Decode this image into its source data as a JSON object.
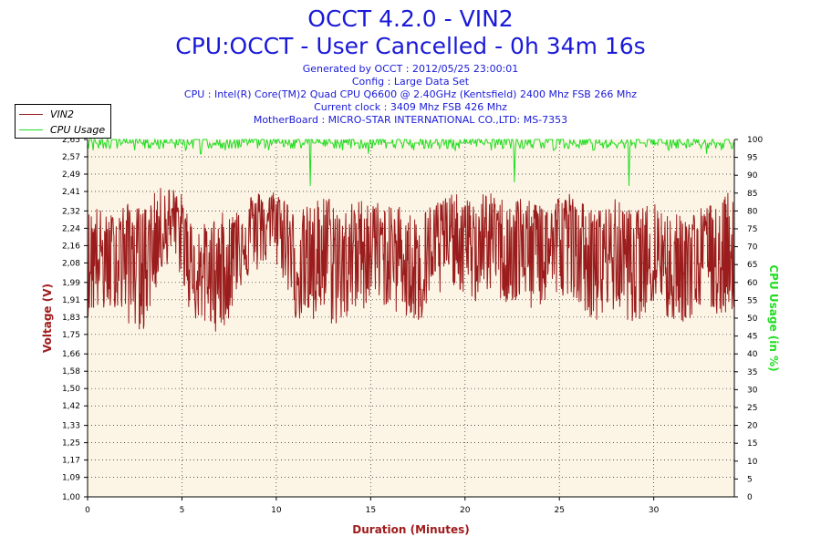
{
  "header": {
    "title": "OCCT 4.2.0 - VIN2",
    "subtitle": "CPU:OCCT - User Cancelled - 0h 34m 16s",
    "info": [
      "Generated by OCCT : 2012/05/25 23:00:01",
      "Config : Large Data Set",
      "CPU : Intel(R) Core(TM)2 Quad CPU Q6600 @ 2.40GHz (Kentsfield) 2400 Mhz FSB 266 Mhz",
      "Current clock : 3409 Mhz FSB 426 Mhz",
      "MotherBoard : MICRO-STAR INTERNATIONAL CO.,LTD: MS-7353"
    ]
  },
  "legend": [
    {
      "label": "VIN2",
      "color": "#9b1c1c"
    },
    {
      "label": "CPU Usage",
      "color": "#22dd22"
    }
  ],
  "chart_data": {
    "type": "line",
    "xlabel": "Duration (Minutes)",
    "ylabel": "Voltage (V)",
    "y2label": "CPU Usage (in %)",
    "xlim": [
      0,
      34.27
    ],
    "ylim": [
      1.0,
      2.65
    ],
    "y2lim": [
      0,
      100
    ],
    "x_ticks": [
      0,
      5,
      10,
      15,
      20,
      25,
      30
    ],
    "y_ticks": [
      "1,00",
      "1,09",
      "1,17",
      "1,25",
      "1,33",
      "1,42",
      "1,50",
      "1,58",
      "1,66",
      "1,75",
      "1,83",
      "1,91",
      "1,99",
      "2,08",
      "2,16",
      "2,24",
      "2,32",
      "2,41",
      "2,49",
      "2,57",
      "2,65"
    ],
    "y2_ticks": [
      0,
      5,
      10,
      15,
      20,
      25,
      30,
      35,
      40,
      45,
      50,
      55,
      60,
      65,
      70,
      75,
      80,
      85,
      90,
      95,
      100
    ],
    "grid": true,
    "legend_position": "top-left",
    "series": [
      {
        "name": "VIN2",
        "color": "#9b1c1c",
        "axis": "left",
        "x": [
          0,
          0.5,
          1,
          1.5,
          2,
          2.5,
          3,
          3.5,
          4,
          4.5,
          5,
          5.5,
          6,
          6.5,
          7,
          7.5,
          8,
          8.5,
          9,
          9.5,
          10,
          10.5,
          11,
          11.5,
          12,
          12.5,
          13,
          13.5,
          14,
          14.5,
          15,
          15.5,
          16,
          16.5,
          17,
          17.5,
          18,
          18.5,
          19,
          19.5,
          20,
          20.5,
          21,
          21.5,
          22,
          22.5,
          23,
          23.5,
          24,
          24.5,
          25,
          25.5,
          26,
          26.5,
          27,
          27.5,
          28,
          28.5,
          29,
          29.5,
          30,
          30.5,
          31,
          31.5,
          32,
          32.5,
          33,
          33.5,
          34
        ],
        "center": [
          2.1,
          2.15,
          2.08,
          2.14,
          2.18,
          2.16,
          2.12,
          2.2,
          2.26,
          2.28,
          2.24,
          2.05,
          2.02,
          2.04,
          2.08,
          2.06,
          2.22,
          2.24,
          2.26,
          2.27,
          2.28,
          2.22,
          2.06,
          2.08,
          2.1,
          2.14,
          2.12,
          2.08,
          2.14,
          2.18,
          2.2,
          2.16,
          2.12,
          2.14,
          2.1,
          2.06,
          2.12,
          2.16,
          2.2,
          2.22,
          2.18,
          2.14,
          2.22,
          2.2,
          2.18,
          2.16,
          2.2,
          2.14,
          2.18,
          2.16,
          2.2,
          2.22,
          2.18,
          2.12,
          2.1,
          2.14,
          2.16,
          2.12,
          2.1,
          2.14,
          2.16,
          2.12,
          2.06,
          2.08,
          2.1,
          2.12,
          2.14,
          2.1,
          2.16
        ],
        "low": [
          1.83,
          1.85,
          1.84,
          1.88,
          1.8,
          1.78,
          1.76,
          1.92,
          2.05,
          2.1,
          2.0,
          1.82,
          1.8,
          1.78,
          1.75,
          1.82,
          1.96,
          2.0,
          2.04,
          2.08,
          2.06,
          1.98,
          1.82,
          1.8,
          1.78,
          1.85,
          1.78,
          1.8,
          1.82,
          1.84,
          1.92,
          1.9,
          1.86,
          1.84,
          1.8,
          1.77,
          1.86,
          1.9,
          1.95,
          1.98,
          1.92,
          1.88,
          1.96,
          1.92,
          1.9,
          1.86,
          1.9,
          1.86,
          1.88,
          1.88,
          1.92,
          1.94,
          1.9,
          1.84,
          1.8,
          1.84,
          1.86,
          1.82,
          1.8,
          1.84,
          1.88,
          1.82,
          1.8,
          1.8,
          1.82,
          1.84,
          1.86,
          1.82,
          1.86
        ],
        "high": [
          2.32,
          2.35,
          2.3,
          2.32,
          2.36,
          2.34,
          2.34,
          2.4,
          2.44,
          2.43,
          2.4,
          2.28,
          2.26,
          2.27,
          2.32,
          2.3,
          2.38,
          2.4,
          2.41,
          2.41,
          2.42,
          2.4,
          2.3,
          2.34,
          2.36,
          2.41,
          2.38,
          2.32,
          2.36,
          2.38,
          2.38,
          2.36,
          2.34,
          2.36,
          2.32,
          2.3,
          2.34,
          2.38,
          2.4,
          2.4,
          2.38,
          2.36,
          2.41,
          2.4,
          2.38,
          2.37,
          2.4,
          2.36,
          2.38,
          2.38,
          2.4,
          2.41,
          2.38,
          2.34,
          2.32,
          2.36,
          2.38,
          2.34,
          2.32,
          2.34,
          2.38,
          2.34,
          2.3,
          2.32,
          2.32,
          2.34,
          2.36,
          2.32,
          2.45
        ]
      },
      {
        "name": "CPU Usage",
        "color": "#22dd22",
        "axis": "right",
        "baseline": 99,
        "dips": [
          [
            0.3,
            97
          ],
          [
            1.2,
            98
          ],
          [
            2.5,
            97
          ],
          [
            3.8,
            98
          ],
          [
            5.2,
            97
          ],
          [
            6.0,
            96
          ],
          [
            7.3,
            97
          ],
          [
            8.1,
            98
          ],
          [
            9.6,
            97
          ],
          [
            10.4,
            98
          ],
          [
            11.8,
            87
          ],
          [
            12.6,
            98
          ],
          [
            13.5,
            97
          ],
          [
            14.9,
            96
          ],
          [
            16.2,
            98
          ],
          [
            17.3,
            97
          ],
          [
            18.7,
            98
          ],
          [
            19.5,
            97
          ],
          [
            20.6,
            98
          ],
          [
            21.4,
            97
          ],
          [
            22.6,
            88
          ],
          [
            23.5,
            98
          ],
          [
            24.7,
            97
          ],
          [
            25.9,
            98
          ],
          [
            26.8,
            97
          ],
          [
            27.6,
            98
          ],
          [
            28.7,
            87
          ],
          [
            29.6,
            98
          ],
          [
            30.8,
            97
          ],
          [
            31.9,
            98
          ],
          [
            32.8,
            96
          ],
          [
            33.6,
            97
          ]
        ]
      }
    ]
  }
}
